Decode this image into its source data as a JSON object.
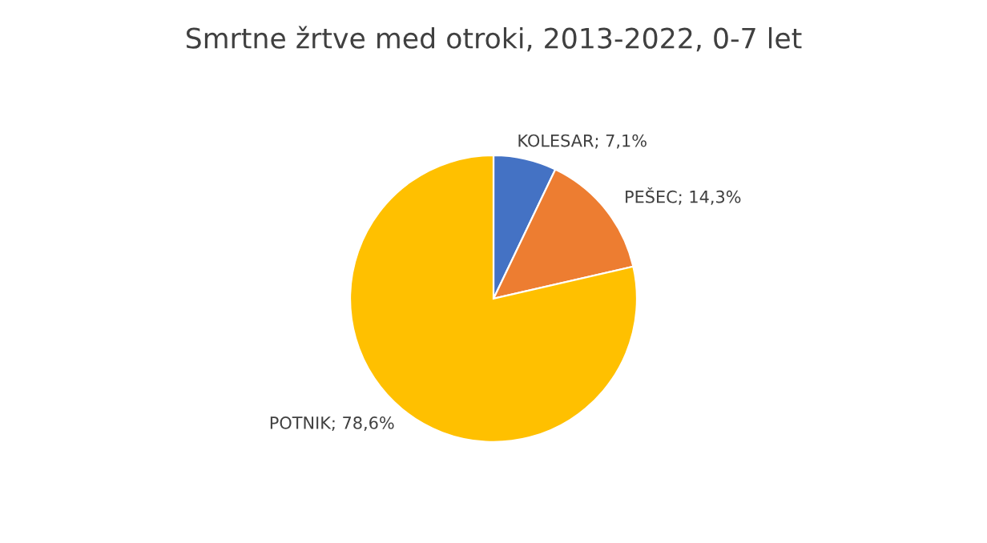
{
  "chart_data": {
    "type": "pie",
    "title": "Smrtne žrtve med otroki, 2013-2022, 0-7 let",
    "categories": [
      "KOLESAR",
      "PEŠEC",
      "POTNIK"
    ],
    "values": [
      7.1,
      14.3,
      78.6
    ],
    "colors": [
      "#4472c4",
      "#ed7d31",
      "#ffc000"
    ],
    "value_labels": [
      "; 7,1%",
      "; 14,3%",
      "; 78,6%"
    ]
  }
}
